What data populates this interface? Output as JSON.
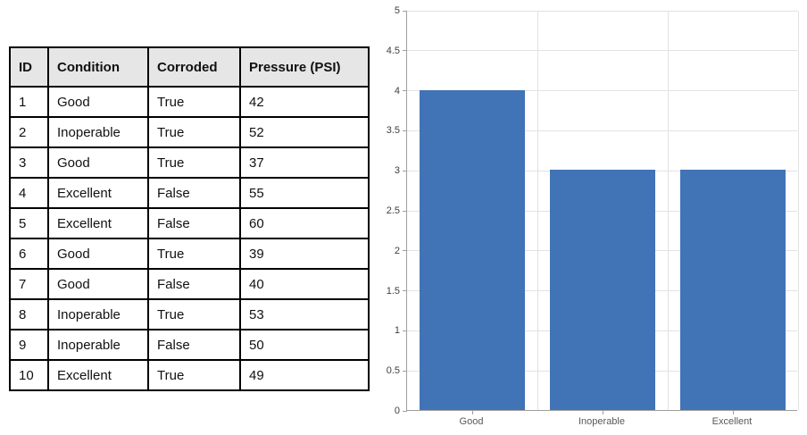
{
  "table": {
    "headers": [
      "ID",
      "Condition",
      "Corroded",
      "Pressure (PSI)"
    ],
    "rows": [
      [
        "1",
        "Good",
        "True",
        "42"
      ],
      [
        "2",
        "Inoperable",
        "True",
        "52"
      ],
      [
        "3",
        "Good",
        "True",
        "37"
      ],
      [
        "4",
        "Excellent",
        "False",
        "55"
      ],
      [
        "5",
        "Excellent",
        "False",
        "60"
      ],
      [
        "6",
        "Good",
        "True",
        "39"
      ],
      [
        "7",
        "Good",
        "False",
        "40"
      ],
      [
        "8",
        "Inoperable",
        "True",
        "53"
      ],
      [
        "9",
        "Inoperable",
        "False",
        "50"
      ],
      [
        "10",
        "Excellent",
        "True",
        "49"
      ]
    ],
    "header_bg": "#e7e6e6",
    "border_color": "#000000"
  },
  "chart_data": {
    "type": "bar",
    "categories": [
      "Good",
      "Inoperable",
      "Excellent"
    ],
    "values": [
      4,
      3,
      3
    ],
    "title": "",
    "xlabel": "",
    "ylabel": "",
    "ylim": [
      0,
      5
    ],
    "ytick_step": 0.5,
    "ytick_labels": [
      "0",
      "0.5",
      "1",
      "1.5",
      "2",
      "2.5",
      "3",
      "3.5",
      "4",
      "4.5",
      "5"
    ],
    "grid": true,
    "legend_position": "none",
    "bar_color": "#4173b7",
    "gridline_color": "#e2e2e2",
    "axis_color": "#9e9e9e"
  }
}
